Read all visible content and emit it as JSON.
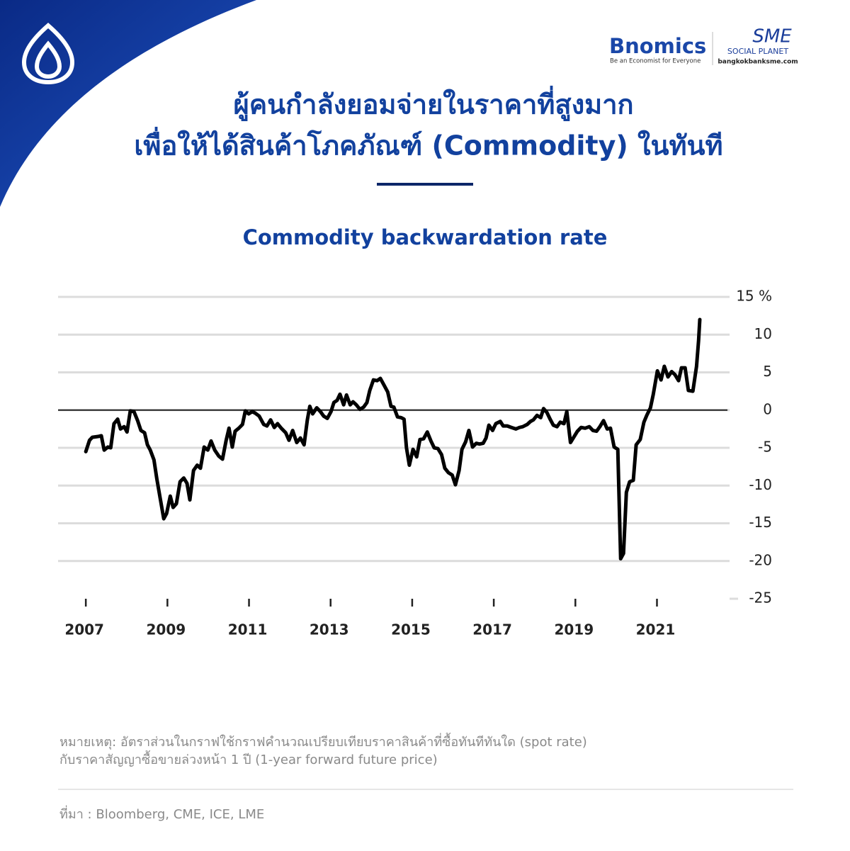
{
  "header": {
    "brand": "Bnomics",
    "tagline": "Be an Economist for Everyone",
    "partner": "SME",
    "partner_sub": "SOCIAL PLANET",
    "partner_url": "bangkokbanksme.com"
  },
  "title": [
    "ผู้คนกำลังยอมจ่ายในราคาที่สูงมาก",
    "เพื่อให้ได้สินค้าโภคภัณฑ์ (Commodity) ในทันที"
  ],
  "chart_data": {
    "type": "line",
    "title": "Commodity backwardation rate",
    "color": "#000000",
    "x": [
      2007.0,
      2007.09,
      2007.16,
      2007.3,
      2007.38,
      2007.45,
      2007.54,
      2007.61,
      2007.69,
      2007.78,
      2007.85,
      2007.94,
      2008.01,
      2008.09,
      2008.18,
      2008.27,
      2008.35,
      2008.44,
      2008.51,
      2008.58,
      2008.67,
      2008.74,
      2008.82,
      2008.91,
      2008.98,
      2009.07,
      2009.14,
      2009.22,
      2009.31,
      2009.4,
      2009.48,
      2009.55,
      2009.64,
      2009.73,
      2009.81,
      2009.9,
      2009.99,
      2010.07,
      2010.16,
      2010.26,
      2010.35,
      2010.44,
      2010.51,
      2010.59,
      2010.66,
      2010.75,
      2010.84,
      2010.91,
      2010.99,
      2011.08,
      2011.15,
      2011.25,
      2011.36,
      2011.44,
      2011.53,
      2011.62,
      2011.7,
      2011.79,
      2011.9,
      2011.98,
      2012.07,
      2012.17,
      2012.26,
      2012.35,
      2012.43,
      2012.49,
      2012.56,
      2012.66,
      2012.75,
      2012.83,
      2012.92,
      2013.01,
      2013.08,
      2013.16,
      2013.23,
      2013.32,
      2013.39,
      2013.48,
      2013.55,
      2013.63,
      2013.72,
      2013.81,
      2013.89,
      2013.96,
      2014.05,
      2014.14,
      2014.22,
      2014.31,
      2014.4,
      2014.48,
      2014.55,
      2014.64,
      2014.73,
      2014.8,
      2014.86,
      2014.93,
      2015.02,
      2015.11,
      2015.19,
      2015.28,
      2015.37,
      2015.46,
      2015.54,
      2015.63,
      2015.72,
      2015.8,
      2015.89,
      2015.98,
      2016.06,
      2016.15,
      2016.22,
      2016.31,
      2016.39,
      2016.48,
      2016.57,
      2016.65,
      2016.74,
      2016.81,
      2016.88,
      2016.97,
      2017.05,
      2017.16,
      2017.23,
      2017.33,
      2017.43,
      2017.54,
      2017.63,
      2017.71,
      2017.82,
      2017.9,
      2017.97,
      2018.06,
      2018.15,
      2018.22,
      2018.3,
      2018.39,
      2018.46,
      2018.55,
      2018.63,
      2018.72,
      2018.79,
      2018.88,
      2018.96,
      2019.05,
      2019.14,
      2019.24,
      2019.34,
      2019.43,
      2019.52,
      2019.6,
      2019.69,
      2019.78,
      2019.86,
      2019.95,
      2020.04,
      2020.11,
      2020.18,
      2020.25,
      2020.33,
      2020.42,
      2020.49,
      2020.59,
      2020.68,
      2020.75,
      2020.84,
      2020.91,
      2021.01,
      2021.1,
      2021.18,
      2021.27,
      2021.36,
      2021.44,
      2021.53,
      2021.6,
      2021.69,
      2021.77,
      2021.88,
      2021.97,
      2022.02,
      2022.05
    ],
    "values": [
      -5.5,
      -4,
      -3.6,
      -3.5,
      -3.4,
      -5.3,
      -4.9,
      -5,
      -1.8,
      -1.2,
      -2.5,
      -2.2,
      -2.9,
      -0.1,
      -0.2,
      -1.4,
      -2.7,
      -3,
      -4.6,
      -5.3,
      -6.6,
      -9.1,
      -11.6,
      -14.4,
      -13.7,
      -11.4,
      -12.9,
      -12.4,
      -9.5,
      -9,
      -9.7,
      -11.9,
      -8,
      -7.3,
      -7.7,
      -4.9,
      -5.3,
      -4.1,
      -5.3,
      -6.1,
      -6.5,
      -4,
      -2.4,
      -4.9,
      -2.8,
      -2.4,
      -1.9,
      -0.1,
      -0.5,
      -0.2,
      -0.4,
      -0.8,
      -1.9,
      -2.1,
      -1.3,
      -2.3,
      -1.8,
      -2.4,
      -3,
      -4,
      -2.7,
      -4.3,
      -3.7,
      -4.6,
      -1.3,
      0.5,
      -0.5,
      0.3,
      -0.2,
      -0.8,
      -1.1,
      -0.2,
      1,
      1.3,
      2.1,
      0.7,
      2,
      0.7,
      1.1,
      0.7,
      0.1,
      0.4,
      1,
      2.6,
      4,
      3.9,
      4.2,
      3.3,
      2.4,
      0.5,
      0.4,
      -0.9,
      -1,
      -1.2,
      -5,
      -7.3,
      -5.2,
      -6.2,
      -3.9,
      -3.8,
      -2.9,
      -4.1,
      -5,
      -5.1,
      -5.9,
      -7.7,
      -8.3,
      -8.6,
      -9.9,
      -8,
      -5.2,
      -4.2,
      -2.7,
      -4.9,
      -4.4,
      -4.5,
      -4.4,
      -3.7,
      -2,
      -2.7,
      -1.8,
      -1.5,
      -2.1,
      -2.1,
      -2.3,
      -2.5,
      -2.3,
      -2.2,
      -1.9,
      -1.5,
      -1.3,
      -0.7,
      -1,
      0.2,
      -0.3,
      -1.3,
      -2,
      -2.2,
      -1.6,
      -1.8,
      -0.2,
      -4.3,
      -3.6,
      -2.8,
      -2.3,
      -2.4,
      -2.2,
      -2.7,
      -2.8,
      -2.2,
      -1.4,
      -2.5,
      -2.4,
      -4.9,
      -5.2,
      -19.7,
      -19,
      -10.9,
      -9.5,
      -9.3,
      -4.6,
      -3.9,
      -1.6,
      -0.7,
      0.3,
      2.1,
      5.2,
      4,
      5.8,
      4.4,
      5.1,
      4.7,
      3.9,
      5.6,
      5.6,
      2.6,
      2.5,
      5.8,
      9.2,
      12
    ],
    "xlim": [
      2006.32,
      2022.78
    ],
    "xticks": [
      2007,
      2009,
      2011,
      2013,
      2015,
      2017,
      2019,
      2021
    ],
    "ylim": [
      -25,
      15
    ],
    "yticks": [
      {
        "value": 15,
        "label": "15 %"
      },
      10,
      5,
      0,
      -5,
      -10,
      -15,
      -20,
      -25
    ],
    "grid": true,
    "zero_line": true
  },
  "note": [
    "หมายเหตุ: อัตราส่วนในกราฟใช้กราฟคำนวณเปรียบเทียบราคาสินค้าที่ซื้อทันทีทันใด (spot rate)",
    "กับราคาสัญญาซื้อขายล่วงหน้า 1 ปี (1-year forward future price)"
  ],
  "source": "ที่มา : Bloomberg, CME, ICE, LME"
}
